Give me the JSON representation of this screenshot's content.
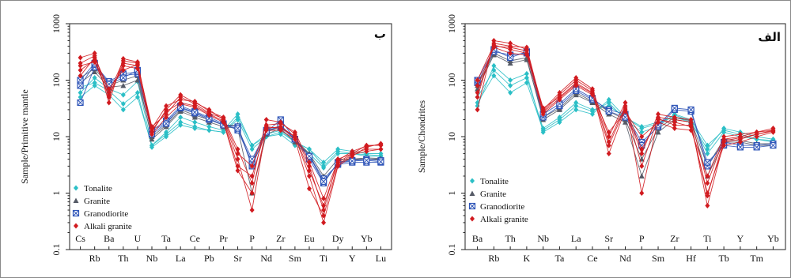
{
  "colors": {
    "Tonalite": "#2bbfc6",
    "Granite": "#555a66",
    "Granodiorite": "#2f55b8",
    "Alkali granite": "#d11a1f"
  },
  "chart_data": [
    {
      "type": "line",
      "panel_label": "ب",
      "ylabel": "Sample/Primitive mantle",
      "yscale": "log",
      "ylim": [
        0.1,
        1000
      ],
      "y_ticks": [
        "0.1",
        "1",
        "10",
        "100",
        "1000"
      ],
      "categories": [
        "Cs",
        "Rb",
        "Ba",
        "Th",
        "U",
        "Nb",
        "Ta",
        "La",
        "Ce",
        "Pb",
        "Pr",
        "Sr",
        "P",
        "Nd",
        "Zr",
        "Sm",
        "Eu",
        "Ti",
        "Dy",
        "Y",
        "Yb",
        "Lu"
      ],
      "legend": [
        "Tonalite",
        "Granite",
        "Granodiorite",
        "Alkali granite"
      ],
      "series": [
        {
          "name": "Tonalite",
          "values": [
            60,
            110,
            70,
            55,
            95,
            7,
            12,
            22,
            18,
            15,
            13,
            25,
            7,
            11,
            13,
            8,
            6,
            3.5,
            6,
            5.5,
            5,
            5
          ]
        },
        {
          "name": "Tonalite",
          "values": [
            75,
            90,
            65,
            38,
            60,
            6.5,
            10,
            16,
            14,
            13,
            12,
            20,
            6,
            10,
            11,
            7,
            5,
            2.8,
            5,
            5,
            4.5,
            4.5
          ]
        },
        {
          "name": "Tonalite",
          "values": [
            50,
            80,
            55,
            30,
            50,
            7,
            11,
            18,
            15,
            13,
            12,
            22,
            7,
            10,
            12,
            8,
            6,
            3,
            5.5,
            5,
            4.8,
            4.6
          ]
        },
        {
          "name": "Granite",
          "values": [
            110,
            160,
            80,
            100,
            120,
            9,
            15,
            28,
            22,
            18,
            15,
            14,
            1,
            11,
            14,
            8,
            5,
            1.5,
            3.5,
            4,
            4,
            4
          ]
        },
        {
          "name": "Granite",
          "values": [
            90,
            140,
            75,
            80,
            100,
            10,
            16,
            30,
            24,
            20,
            16,
            16,
            3,
            12,
            15,
            9,
            5,
            2,
            4,
            4,
            4.2,
            4.1
          ]
        },
        {
          "name": "Granodiorite",
          "values": [
            40,
            170,
            90,
            120,
            130,
            12,
            18,
            32,
            26,
            20,
            16,
            15,
            3,
            12,
            20,
            9,
            4,
            1.5,
            3.5,
            3.8,
            4,
            3.8
          ]
        },
        {
          "name": "Granodiorite",
          "values": [
            80,
            190,
            95,
            130,
            140,
            13,
            19,
            35,
            28,
            22,
            17,
            13,
            3.5,
            13,
            15,
            9,
            4.5,
            1.8,
            3.2,
            3.5,
            3.5,
            3.5
          ]
        },
        {
          "name": "Granodiorite",
          "values": [
            100,
            200,
            85,
            110,
            150,
            11,
            17,
            33,
            27,
            21,
            16,
            14,
            4,
            12,
            16,
            9,
            4.5,
            1.6,
            3.4,
            3.7,
            3.8,
            3.6
          ]
        },
        {
          "name": "Alkali granite",
          "values": [
            250,
            300,
            40,
            240,
            210,
            12,
            30,
            55,
            40,
            30,
            20,
            4,
            0.5,
            15,
            14,
            10,
            2,
            0.3,
            3,
            4.5,
            6.5,
            7.5
          ]
        },
        {
          "name": "Alkali granite",
          "values": [
            200,
            270,
            60,
            220,
            200,
            14,
            35,
            45,
            42,
            28,
            22,
            6,
            1.5,
            20,
            18,
            11,
            3,
            0.5,
            4,
            5,
            7,
            7
          ]
        },
        {
          "name": "Alkali granite",
          "values": [
            150,
            230,
            50,
            200,
            180,
            13,
            28,
            40,
            35,
            25,
            19,
            3,
            2,
            14,
            15,
            10,
            2.5,
            0.6,
            3.5,
            5,
            6,
            6
          ]
        },
        {
          "name": "Alkali granite",
          "values": [
            120,
            250,
            70,
            150,
            190,
            15,
            25,
            50,
            38,
            26,
            21,
            5,
            3,
            16,
            17,
            12,
            3.5,
            0.8,
            3.8,
            5.5,
            6.8,
            7.2
          ]
        },
        {
          "name": "Alkali granite",
          "values": [
            180,
            210,
            55,
            180,
            160,
            11,
            22,
            38,
            33,
            24,
            18,
            2.5,
            1,
            13,
            13,
            9,
            1.2,
            0.4,
            3.2,
            4.8,
            5.5,
            6
          ]
        }
      ]
    },
    {
      "type": "line",
      "panel_label": "الف",
      "ylabel": "Sample/Chondrites",
      "yscale": "log",
      "ylim": [
        0.1,
        1000
      ],
      "y_ticks": [
        "0.1",
        "1",
        "10",
        "100",
        "1000"
      ],
      "categories": [
        "Ba",
        "Rb",
        "Th",
        "K",
        "Nb",
        "Ta",
        "La",
        "Ce",
        "Sr",
        "Nd",
        "P",
        "Sm",
        "Zr",
        "Hf",
        "Ti",
        "Tb",
        "Y",
        "Tm",
        "Yb"
      ],
      "legend": [
        "Tonalite",
        "Granite",
        "Granodiorite",
        "Alkali granite"
      ],
      "series": [
        {
          "name": "Tonalite",
          "values": [
            35,
            180,
            100,
            130,
            12,
            18,
            30,
            25,
            45,
            22,
            15,
            18,
            22,
            18,
            6,
            14,
            12,
            10,
            9
          ]
        },
        {
          "name": "Tonalite",
          "values": [
            40,
            120,
            60,
            90,
            13,
            20,
            35,
            28,
            40,
            20,
            12,
            15,
            25,
            20,
            7,
            13,
            11,
            9,
            8
          ]
        },
        {
          "name": "Tonalite",
          "values": [
            50,
            150,
            80,
            110,
            14,
            22,
            40,
            30,
            35,
            22,
            14,
            17,
            24,
            19,
            5,
            12,
            10,
            9,
            8.5
          ]
        },
        {
          "name": "Granite",
          "values": [
            80,
            300,
            220,
            250,
            20,
            30,
            55,
            40,
            25,
            18,
            2,
            12,
            20,
            18,
            2,
            8,
            8,
            7,
            7
          ]
        },
        {
          "name": "Granite",
          "values": [
            70,
            280,
            200,
            230,
            22,
            32,
            60,
            42,
            28,
            20,
            4,
            14,
            22,
            19,
            3,
            9,
            8.5,
            7.5,
            7.5
          ]
        },
        {
          "name": "Granodiorite",
          "values": [
            90,
            320,
            280,
            300,
            22,
            35,
            65,
            45,
            30,
            25,
            8,
            15,
            30,
            28,
            3,
            8,
            7,
            7,
            7.5
          ]
        },
        {
          "name": "Granodiorite",
          "values": [
            100,
            350,
            250,
            320,
            25,
            38,
            70,
            48,
            28,
            22,
            7,
            16,
            32,
            30,
            3.5,
            7,
            6.5,
            6.5,
            7
          ]
        },
        {
          "name": "Alkali granite",
          "values": [
            30,
            500,
            450,
            350,
            30,
            60,
            110,
            70,
            10,
            40,
            1,
            20,
            18,
            15,
            1,
            7,
            8,
            10,
            12
          ]
        },
        {
          "name": "Alkali granite",
          "values": [
            50,
            450,
            400,
            380,
            28,
            55,
            100,
            65,
            8,
            35,
            3,
            22,
            20,
            18,
            0.6,
            8,
            9,
            11,
            13
          ]
        },
        {
          "name": "Alkali granite",
          "values": [
            100,
            420,
            350,
            300,
            32,
            50,
            90,
            60,
            5,
            30,
            5,
            25,
            22,
            20,
            1.5,
            9,
            10,
            12,
            14
          ]
        },
        {
          "name": "Alkali granite",
          "values": [
            80,
            380,
            300,
            280,
            25,
            45,
            80,
            55,
            12,
            28,
            10,
            18,
            14,
            13,
            2,
            10,
            11,
            12,
            13
          ]
        },
        {
          "name": "Alkali granite",
          "values": [
            60,
            400,
            380,
            330,
            27,
            48,
            85,
            58,
            7,
            32,
            6,
            21,
            16,
            16,
            0.9,
            8.5,
            9.5,
            11,
            12.5
          ]
        }
      ]
    }
  ]
}
